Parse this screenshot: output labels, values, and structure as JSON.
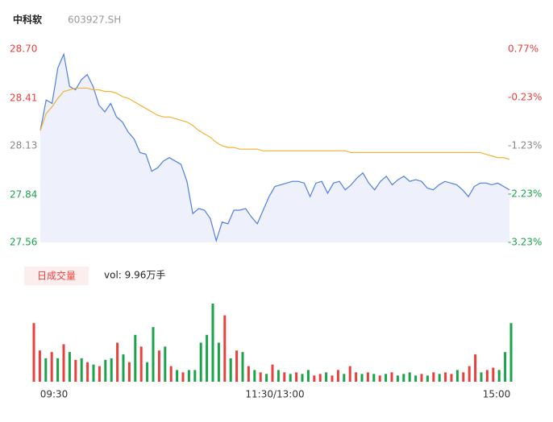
{
  "header": {
    "title": "中科软",
    "code": "603927.SH"
  },
  "chart_data": [
    {
      "type": "line",
      "xlim": [
        0,
        80
      ],
      "xticks": [
        {
          "value": 0,
          "label": "09:30"
        },
        {
          "value": 40,
          "label": "11:30/13:00"
        },
        {
          "value": 80,
          "label": "15:00"
        }
      ],
      "ylim": [
        27.56,
        28.7
      ],
      "yticks": [
        27.56,
        27.84,
        28.13,
        28.41,
        {
          "value": 28.7,
          "label": "28.70"
        }
      ],
      "ytick_colors": [
        "#1aa34a",
        "#1aa34a",
        "#888888",
        "#e8413d",
        "#e8413d"
      ],
      "y2lim": [
        -3.23,
        0.77
      ],
      "y2ticks": [
        {
          "value": -3.23,
          "label": "-3.23%"
        },
        {
          "value": -2.23,
          "label": "-2.23%"
        },
        {
          "value": -1.23,
          "label": "-1.23%"
        },
        {
          "value": -0.23,
          "label": "-0.23%"
        },
        {
          "value": 0.77,
          "label": "0.77%"
        }
      ],
      "y2tick_colors": [
        "#1aa34a",
        "#1aa34a",
        "#888888",
        "#e8413d",
        "#e8413d"
      ],
      "area_color": "#eef1fb",
      "series": [
        {
          "color": "#4f7fe0",
          "values": [
            28.22,
            28.4,
            28.38,
            28.59,
            28.67,
            28.48,
            28.46,
            28.52,
            28.55,
            28.48,
            28.37,
            28.33,
            28.38,
            28.3,
            28.27,
            28.21,
            28.17,
            28.09,
            28.08,
            27.98,
            28.0,
            28.04,
            28.06,
            28.04,
            28.02,
            27.92,
            27.73,
            27.76,
            27.75,
            27.7,
            27.57,
            27.68,
            27.67,
            27.75,
            27.75,
            27.76,
            27.71,
            27.67,
            27.75,
            27.83,
            27.89,
            27.9,
            27.91,
            27.92,
            27.92,
            27.91,
            27.83,
            27.91,
            27.92,
            27.85,
            27.91,
            27.92,
            27.87,
            27.9,
            27.94,
            27.97,
            27.91,
            27.87,
            27.92,
            27.95,
            27.9,
            27.93,
            27.95,
            27.92,
            27.93,
            27.92,
            27.88,
            27.87,
            27.9,
            27.92,
            27.91,
            27.9,
            27.87,
            27.83,
            27.89,
            27.91,
            27.91,
            27.9,
            27.91,
            27.89,
            27.87
          ]
        },
        {
          "color": "#f2b134",
          "values": [
            28.22,
            28.32,
            28.36,
            28.41,
            28.45,
            28.46,
            28.47,
            28.47,
            28.47,
            28.46,
            28.46,
            28.45,
            28.45,
            28.44,
            28.42,
            28.41,
            28.39,
            28.37,
            28.35,
            28.33,
            28.31,
            28.3,
            28.3,
            28.29,
            28.28,
            28.27,
            28.25,
            28.22,
            28.2,
            28.18,
            28.15,
            28.13,
            28.12,
            28.12,
            28.11,
            28.11,
            28.11,
            28.11,
            28.1,
            28.1,
            28.1,
            28.1,
            28.1,
            28.1,
            28.1,
            28.1,
            28.1,
            28.1,
            28.1,
            28.1,
            28.1,
            28.1,
            28.1,
            28.09,
            28.09,
            28.09,
            28.09,
            28.09,
            28.09,
            28.09,
            28.09,
            28.09,
            28.09,
            28.09,
            28.09,
            28.09,
            28.09,
            28.09,
            28.09,
            28.09,
            28.09,
            28.09,
            28.09,
            28.09,
            28.09,
            28.09,
            28.08,
            28.07,
            28.06,
            28.06,
            28.05
          ]
        }
      ]
    },
    {
      "type": "bar",
      "badge": "日成交量",
      "summary": "vol: 9.96万手",
      "ylim": [
        0,
        100
      ],
      "up_color": "#e8413d",
      "down_color": "#1aa34a",
      "values": [
        75,
        40,
        30,
        38,
        30,
        48,
        38,
        28,
        30,
        25,
        22,
        20,
        28,
        30,
        50,
        35,
        25,
        60,
        45,
        25,
        70,
        40,
        45,
        20,
        15,
        12,
        15,
        15,
        50,
        60,
        100,
        50,
        85,
        30,
        40,
        38,
        20,
        15,
        12,
        10,
        22,
        15,
        12,
        10,
        12,
        10,
        15,
        8,
        10,
        12,
        8,
        15,
        10,
        20,
        12,
        10,
        12,
        10,
        8,
        10,
        12,
        8,
        10,
        12,
        8,
        10,
        8,
        12,
        10,
        12,
        10,
        15,
        12,
        20,
        35,
        12,
        15,
        18,
        15,
        38,
        75
      ],
      "up": [
        true,
        true,
        false,
        true,
        false,
        true,
        false,
        true,
        false,
        true,
        false,
        true,
        false,
        false,
        true,
        false,
        true,
        false,
        true,
        false,
        false,
        true,
        false,
        true,
        false,
        true,
        false,
        false,
        false,
        false,
        false,
        false,
        true,
        false,
        true,
        false,
        true,
        false,
        true,
        false,
        true,
        false,
        true,
        false,
        true,
        false,
        false,
        true,
        true,
        false,
        true,
        true,
        false,
        true,
        true,
        false,
        true,
        false,
        true,
        false,
        true,
        false,
        false,
        false,
        false,
        true,
        false,
        true,
        false,
        true,
        true,
        false,
        true,
        true,
        true,
        false,
        true,
        true,
        false,
        false,
        false
      ]
    }
  ]
}
